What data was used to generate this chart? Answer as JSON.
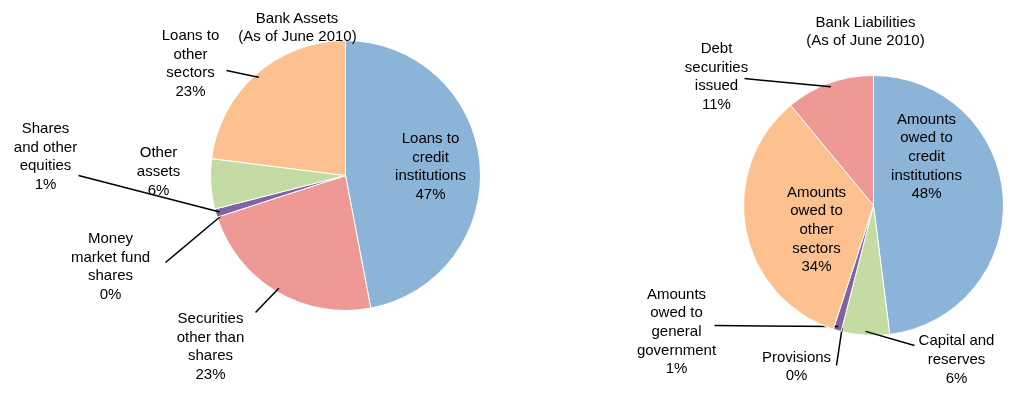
{
  "chart_data": [
    {
      "type": "pie",
      "title": "Bank Assets\n(As of June 2010)",
      "categories": [
        "Loans to credit institutions",
        "Securities other than shares",
        "Money market fund shares",
        "Shares and other equities",
        "Other assets",
        "Loans to other sectors"
      ],
      "values": [
        47,
        23,
        0,
        1,
        6,
        23
      ],
      "value_labels": [
        "47%",
        "23%",
        "0%",
        "1%",
        "6%",
        "23%"
      ],
      "colors": [
        "#8cb4d8",
        "#ef9997",
        "#9bbb59",
        "#8064a2",
        "#c4dca4",
        "#fcc18f"
      ]
    },
    {
      "type": "pie",
      "title": "Bank Liabilities\n(As of June 2010)",
      "categories": [
        "Amounts owed to credit institutions",
        "Capital and reserves",
        "Provisions",
        "Amounts owed to general government",
        "Amounts owed to other sectors",
        "Debt securities issued"
      ],
      "values": [
        48,
        6,
        0,
        1,
        34,
        11
      ],
      "value_labels": [
        "48%",
        "6%",
        "0%",
        "1%",
        "34%",
        "11%"
      ],
      "colors": [
        "#8cb4d8",
        "#c4dca4",
        "#9bbb59",
        "#8064a2",
        "#fcc18f",
        "#ef9997"
      ]
    }
  ]
}
